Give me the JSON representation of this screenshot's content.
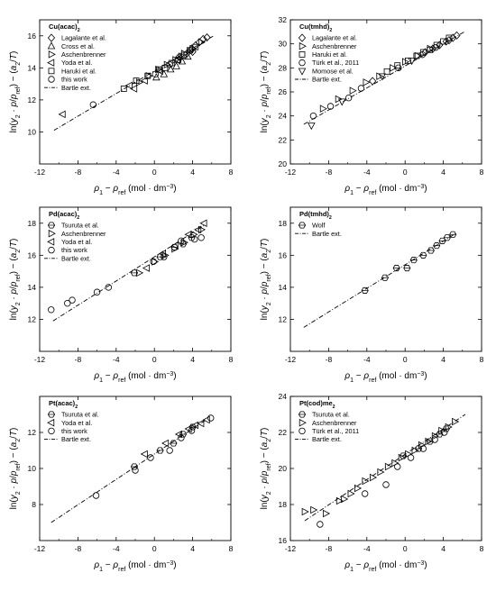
{
  "figure": {
    "x_axis_label": "ρ1 − ρref (mol · dm⁻³)",
    "y_axis_label": "ln(y2 · p/pref) − (a2/T)"
  },
  "chart_data": [
    {
      "type": "scatter",
      "title": "Cu(acac)2",
      "xlim": [
        -12,
        8
      ],
      "ylim": [
        8,
        17
      ],
      "xticks": [
        -12,
        -8,
        -4,
        0,
        4,
        8
      ],
      "yticks": [
        10,
        12,
        14,
        16
      ],
      "grid": false,
      "legend_position": "top-left",
      "series": [
        {
          "name": "Lagalante et al.",
          "marker": "diamond",
          "points": [
            [
              2.6,
              14.7
            ],
            [
              3.4,
              14.9
            ],
            [
              3.9,
              15.2
            ],
            [
              4.3,
              15.4
            ],
            [
              4.7,
              15.6
            ],
            [
              5.1,
              15.8
            ],
            [
              5.5,
              15.9
            ],
            [
              4.0,
              15.0
            ]
          ]
        },
        {
          "name": "Cross et al.",
          "marker": "triangle-up",
          "points": [
            [
              0.2,
              13.4
            ],
            [
              1.0,
              13.6
            ],
            [
              1.7,
              13.9
            ],
            [
              2.3,
              14.1
            ],
            [
              2.9,
              14.4
            ],
            [
              3.5,
              14.7
            ]
          ]
        },
        {
          "name": "Aschenbrenner",
          "marker": "triangle-right",
          "points": [
            [
              -1.6,
              13.1
            ],
            [
              -0.6,
              13.5
            ],
            [
              0.4,
              13.9
            ],
            [
              1.3,
              14.2
            ],
            [
              2.2,
              14.5
            ],
            [
              3.1,
              14.9
            ],
            [
              4.0,
              15.2
            ],
            [
              4.9,
              15.6
            ]
          ]
        },
        {
          "name": "Yoda et al.",
          "marker": "triangle-left",
          "points": [
            [
              -9.6,
              11.1
            ],
            [
              -2.6,
              12.9
            ],
            [
              -2.1,
              12.7
            ],
            [
              -1.0,
              13.2
            ],
            [
              0.6,
              13.8
            ],
            [
              2.4,
              14.5
            ]
          ]
        },
        {
          "name": "Haruki et al.",
          "marker": "square",
          "points": [
            [
              -3.2,
              12.7
            ],
            [
              -1.9,
              13.2
            ],
            [
              -0.7,
              13.5
            ],
            [
              0.5,
              13.9
            ],
            [
              1.1,
              14.0
            ],
            [
              1.8,
              14.3
            ],
            [
              2.5,
              14.5
            ],
            [
              3.1,
              14.8
            ],
            [
              3.7,
              15.1
            ],
            [
              4.3,
              15.3
            ]
          ]
        },
        {
          "name": "this work",
          "marker": "circle",
          "points": [
            [
              -6.4,
              11.7
            ],
            [
              0.1,
              13.6
            ],
            [
              1.6,
              14.2
            ],
            [
              2.8,
              14.7
            ],
            [
              3.8,
              15.1
            ]
          ]
        },
        {
          "name": "Bartle ext.",
          "line": "dash-dot",
          "points": [
            [
              -10.5,
              10.1
            ],
            [
              6.2,
              16.0
            ]
          ]
        }
      ]
    },
    {
      "type": "scatter",
      "title": "Cu(tmhd)2",
      "xlim": [
        -12,
        8
      ],
      "ylim": [
        20,
        32
      ],
      "xticks": [
        -12,
        -8,
        -4,
        0,
        4,
        8
      ],
      "yticks": [
        20,
        22,
        24,
        26,
        28,
        30,
        32
      ],
      "grid": false,
      "legend_position": "top-left",
      "series": [
        {
          "name": "Lagalante et al.",
          "marker": "diamond",
          "points": [
            [
              -3.4,
              26.9
            ],
            [
              2.1,
              29.3
            ],
            [
              2.9,
              29.6
            ],
            [
              3.6,
              29.9
            ],
            [
              4.3,
              30.2
            ],
            [
              5.0,
              30.5
            ],
            [
              5.4,
              30.7
            ],
            [
              4.6,
              30.3
            ]
          ]
        },
        {
          "name": "Aschenbrenner",
          "marker": "triangle-right",
          "points": [
            [
              -8.6,
              24.6
            ],
            [
              -7.0,
              25.4
            ],
            [
              -5.5,
              26.1
            ],
            [
              -4.1,
              26.8
            ],
            [
              -2.7,
              27.3
            ],
            [
              -1.3,
              28.0
            ],
            [
              0.0,
              28.5
            ],
            [
              1.3,
              29.0
            ],
            [
              2.6,
              29.6
            ]
          ]
        },
        {
          "name": "Haruki et al.",
          "marker": "square",
          "points": [
            [
              -1.9,
              27.7
            ],
            [
              -0.8,
              28.2
            ],
            [
              0.3,
              28.6
            ],
            [
              1.2,
              29.0
            ],
            [
              1.9,
              29.3
            ],
            [
              2.6,
              29.5
            ],
            [
              3.3,
              29.9
            ],
            [
              4.0,
              30.2
            ],
            [
              4.6,
              30.5
            ]
          ]
        },
        {
          "name": "Türk et al., 2011",
          "marker": "circle",
          "points": [
            [
              -9.6,
              24.0
            ],
            [
              -7.8,
              24.8
            ],
            [
              -5.9,
              25.5
            ],
            [
              -4.6,
              26.3
            ],
            [
              -0.7,
              28.0
            ],
            [
              1.8,
              29.1
            ],
            [
              3.2,
              29.7
            ]
          ]
        },
        {
          "name": "Momose et al.",
          "marker": "triangle-down",
          "points": [
            [
              -9.8,
              23.2
            ],
            [
              -6.6,
              25.2
            ],
            [
              -2.4,
              27.3
            ],
            [
              0.7,
              28.6
            ]
          ]
        },
        {
          "name": "Bartle ext.",
          "line": "dash-dot",
          "points": [
            [
              -10.6,
              23.3
            ],
            [
              6.2,
              31.0
            ]
          ]
        }
      ]
    },
    {
      "type": "scatter",
      "title": "Pd(acac)2",
      "xlim": [
        -12,
        8
      ],
      "ylim": [
        10,
        19
      ],
      "xticks": [
        -12,
        -8,
        -4,
        0,
        4,
        8
      ],
      "yticks": [
        12,
        14,
        16,
        18
      ],
      "grid": false,
      "legend_position": "top-left",
      "series": [
        {
          "name": "Tsuruta et al.",
          "marker": "hexagon",
          "points": [
            [
              -2.1,
              14.9
            ],
            [
              0.6,
              15.9
            ],
            [
              2.1,
              16.5
            ],
            [
              3.0,
              16.7
            ],
            [
              3.9,
              17.1
            ]
          ]
        },
        {
          "name": "Aschenbrenner",
          "marker": "triangle-right",
          "points": [
            [
              -1.6,
              14.9
            ],
            [
              0.0,
              15.6
            ],
            [
              1.1,
              16.0
            ],
            [
              2.1,
              16.4
            ],
            [
              3.1,
              16.8
            ],
            [
              4.1,
              17.3
            ],
            [
              4.9,
              17.6
            ]
          ]
        },
        {
          "name": "Yoda et al.",
          "marker": "triangle-left",
          "points": [
            [
              -0.8,
              15.2
            ],
            [
              0.9,
              16.1
            ],
            [
              2.2,
              16.6
            ],
            [
              3.6,
              17.3
            ],
            [
              4.6,
              17.6
            ],
            [
              5.2,
              18.0
            ]
          ]
        },
        {
          "name": "this work",
          "marker": "circle",
          "points": [
            [
              -10.8,
              12.6
            ],
            [
              -9.1,
              13.0
            ],
            [
              -8.6,
              13.2
            ],
            [
              -6.0,
              13.7
            ],
            [
              -4.8,
              14.0
            ],
            [
              -0.1,
              15.6
            ],
            [
              1.0,
              15.9
            ],
            [
              2.8,
              16.9
            ],
            [
              4.2,
              17.0
            ],
            [
              4.9,
              17.1
            ]
          ]
        },
        {
          "name": "Bartle ext.",
          "line": "dash-dot",
          "points": [
            [
              -10.6,
              11.9
            ],
            [
              5.3,
              17.9
            ]
          ]
        }
      ]
    },
    {
      "type": "scatter",
      "title": "Pd(tmhd)2",
      "xlim": [
        -12,
        8
      ],
      "ylim": [
        10,
        19
      ],
      "xticks": [
        -12,
        -8,
        -4,
        0,
        4,
        8
      ],
      "yticks": [
        12,
        14,
        16,
        18
      ],
      "grid": false,
      "legend_position": "top-left",
      "series": [
        {
          "name": "Wolf",
          "marker": "hexagon",
          "points": [
            [
              -4.2,
              13.8
            ],
            [
              -2.1,
              14.6
            ],
            [
              -0.9,
              15.2
            ],
            [
              0.2,
              15.2
            ],
            [
              0.9,
              15.7
            ],
            [
              1.9,
              16.0
            ],
            [
              2.7,
              16.3
            ],
            [
              3.3,
              16.6
            ],
            [
              3.9,
              16.9
            ],
            [
              4.4,
              17.1
            ],
            [
              5.0,
              17.3
            ]
          ]
        },
        {
          "name": "Bartle ext.",
          "line": "dash-dot",
          "points": [
            [
              -10.6,
              11.5
            ],
            [
              5.4,
              17.4
            ]
          ]
        }
      ]
    },
    {
      "type": "scatter",
      "title": "Pt(acac)2",
      "xlim": [
        -12,
        8
      ],
      "ylim": [
        6,
        14
      ],
      "xticks": [
        -12,
        -8,
        -4,
        0,
        4,
        8
      ],
      "yticks": [
        8,
        10,
        12
      ],
      "grid": false,
      "legend_position": "top-left",
      "series": [
        {
          "name": "Tsuruta et al.",
          "marker": "hexagon",
          "points": [
            [
              -2.1,
              10.1
            ],
            [
              0.6,
              11.0
            ],
            [
              2.0,
              11.4
            ],
            [
              3.0,
              11.9
            ],
            [
              4.0,
              12.3
            ]
          ]
        },
        {
          "name": "Yoda et al.",
          "marker": "triangle-left",
          "points": [
            [
              -1.0,
              10.8
            ],
            [
              1.2,
              11.4
            ],
            [
              2.6,
              11.9
            ],
            [
              3.6,
              12.2
            ],
            [
              4.3,
              12.4
            ],
            [
              4.9,
              12.5
            ],
            [
              5.5,
              12.7
            ]
          ]
        },
        {
          "name": "this work",
          "marker": "circle",
          "points": [
            [
              -6.1,
              8.5
            ],
            [
              -2.0,
              9.9
            ],
            [
              -0.4,
              10.6
            ],
            [
              1.6,
              11.0
            ],
            [
              2.8,
              11.7
            ],
            [
              3.9,
              12.1
            ],
            [
              5.9,
              12.8
            ]
          ]
        },
        {
          "name": "Bartle ext.",
          "line": "dash-dot",
          "points": [
            [
              -10.8,
              7.0
            ],
            [
              5.4,
              12.7
            ]
          ]
        }
      ]
    },
    {
      "type": "scatter",
      "title": "Pt(cod)me2",
      "xlim": [
        -12,
        8
      ],
      "ylim": [
        16,
        24
      ],
      "xticks": [
        -12,
        -8,
        -4,
        0,
        4,
        8
      ],
      "yticks": [
        16,
        18,
        20,
        22,
        24
      ],
      "grid": false,
      "legend_position": "top-left",
      "series": [
        {
          "name": "Tsuruta et al.",
          "marker": "hexagon",
          "points": [
            [
              -0.2,
              20.7
            ],
            [
              1.4,
              21.1
            ],
            [
              2.6,
              21.5
            ],
            [
              3.6,
              21.9
            ],
            [
              4.3,
              22.2
            ]
          ]
        },
        {
          "name": "Aschenbrenner",
          "marker": "triangle-right",
          "points": [
            [
              -10.5,
              17.6
            ],
            [
              -9.6,
              17.7
            ],
            [
              -8.3,
              17.5
            ],
            [
              -6.9,
              18.2
            ],
            [
              -6.4,
              18.3
            ],
            [
              -5.7,
              18.6
            ],
            [
              -5.0,
              18.9
            ],
            [
              -4.2,
              19.3
            ],
            [
              -3.4,
              19.5
            ],
            [
              -2.6,
              19.8
            ],
            [
              -1.8,
              20.1
            ],
            [
              -1.1,
              20.3
            ],
            [
              -0.4,
              20.6
            ],
            [
              0.3,
              20.8
            ],
            [
              1.0,
              21.0
            ],
            [
              1.7,
              21.3
            ],
            [
              2.4,
              21.5
            ],
            [
              3.1,
              21.8
            ],
            [
              3.8,
              22.1
            ],
            [
              4.5,
              22.3
            ],
            [
              5.2,
              22.6
            ]
          ]
        },
        {
          "name": "Türk et al., 2011",
          "marker": "circle",
          "points": [
            [
              -8.9,
              16.9
            ],
            [
              -4.2,
              18.6
            ],
            [
              -2.0,
              19.1
            ],
            [
              -0.8,
              20.1
            ],
            [
              0.6,
              20.6
            ],
            [
              1.9,
              21.1
            ],
            [
              3.1,
              21.6
            ],
            [
              4.1,
              22.0
            ]
          ]
        },
        {
          "name": "Bartle ext.",
          "line": "dash-dot",
          "points": [
            [
              -10.5,
              17.1
            ],
            [
              6.3,
              23.0
            ]
          ]
        }
      ]
    }
  ]
}
